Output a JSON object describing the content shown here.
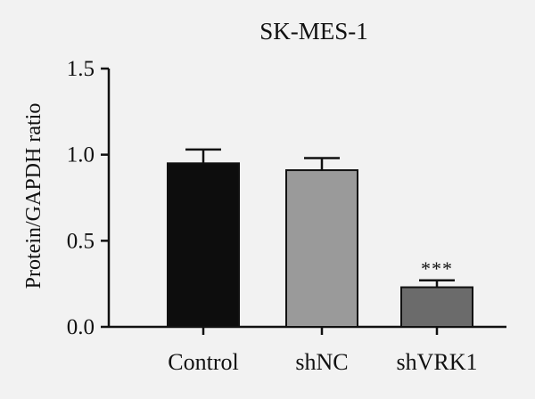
{
  "chart_data": {
    "type": "bar",
    "title": "SK-MES-1",
    "xlabel": "",
    "ylabel": "Protein/GAPDH ratio",
    "categories": [
      "Control",
      "shNC",
      "shVRK1"
    ],
    "values": [
      0.95,
      0.91,
      0.23
    ],
    "errors": [
      0.08,
      0.07,
      0.04
    ],
    "significance": [
      "",
      "",
      "***"
    ],
    "bar_colors": [
      "#0d0d0d",
      "#9a9a9a",
      "#6b6b6b"
    ],
    "ylim": [
      0,
      1.5
    ],
    "yticks": [
      0,
      0.5,
      1.0,
      1.5
    ],
    "ytick_labels": [
      "0.0",
      "0.5",
      "1.0",
      "1.5"
    ],
    "grid": false,
    "legend": "none"
  }
}
